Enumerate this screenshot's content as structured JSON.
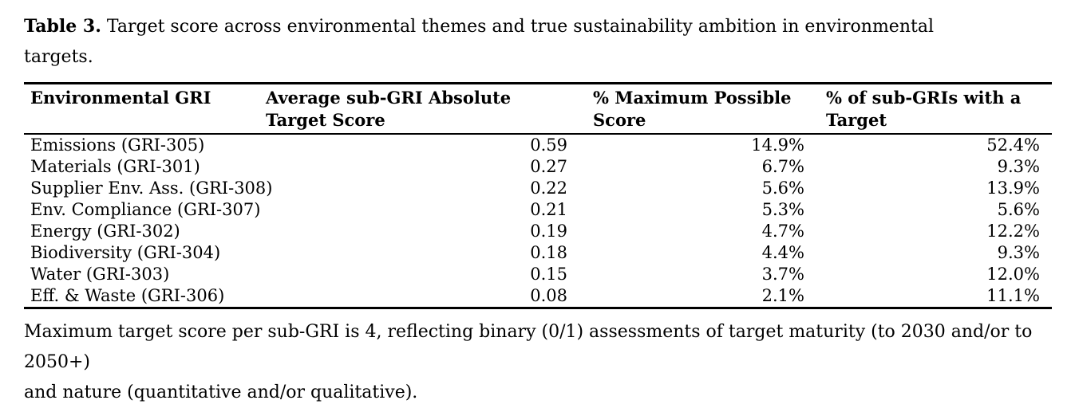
{
  "title": {
    "label": "Table 3.",
    "line1": "Target score across environmental themes and true sustainability ambition in environmental",
    "line2": "targets."
  },
  "table": {
    "columns": [
      "Environmental GRI",
      "Average sub-GRI Absolute Target Score",
      "% Maximum Possible Score",
      "% of sub-GRIs with a Target"
    ],
    "rows": [
      {
        "gri": "Emissions (GRI-305)",
        "avg_score": "0.59",
        "pct_max": "14.9%",
        "pct_with_target": "52.4%"
      },
      {
        "gri": "Materials (GRI-301)",
        "avg_score": "0.27",
        "pct_max": "6.7%",
        "pct_with_target": "9.3%"
      },
      {
        "gri": "Supplier Env. Ass. (GRI-308)",
        "avg_score": "0.22",
        "pct_max": "5.6%",
        "pct_with_target": "13.9%"
      },
      {
        "gri": "Env. Compliance (GRI-307)",
        "avg_score": "0.21",
        "pct_max": "5.3%",
        "pct_with_target": "5.6%"
      },
      {
        "gri": "Energy (GRI-302)",
        "avg_score": "0.19",
        "pct_max": "4.7%",
        "pct_with_target": "12.2%"
      },
      {
        "gri": "Biodiversity (GRI-304)",
        "avg_score": "0.18",
        "pct_max": "4.4%",
        "pct_with_target": "9.3%"
      },
      {
        "gri": "Water (GRI-303)",
        "avg_score": "0.15",
        "pct_max": "3.7%",
        "pct_with_target": "12.0%"
      },
      {
        "gri": "Eff. & Waste (GRI-306)",
        "avg_score": "0.08",
        "pct_max": "2.1%",
        "pct_with_target": "11.1%"
      }
    ]
  },
  "footnote": {
    "line1": "Maximum target score per sub-GRI is 4, reflecting binary (0/1) assessments of target maturity (to 2030 and/or to 2050+)",
    "line2": "and nature (quantitative and/or qualitative)."
  },
  "colors": {
    "text": "#000000",
    "rule": "#000000",
    "background": "#ffffff"
  }
}
